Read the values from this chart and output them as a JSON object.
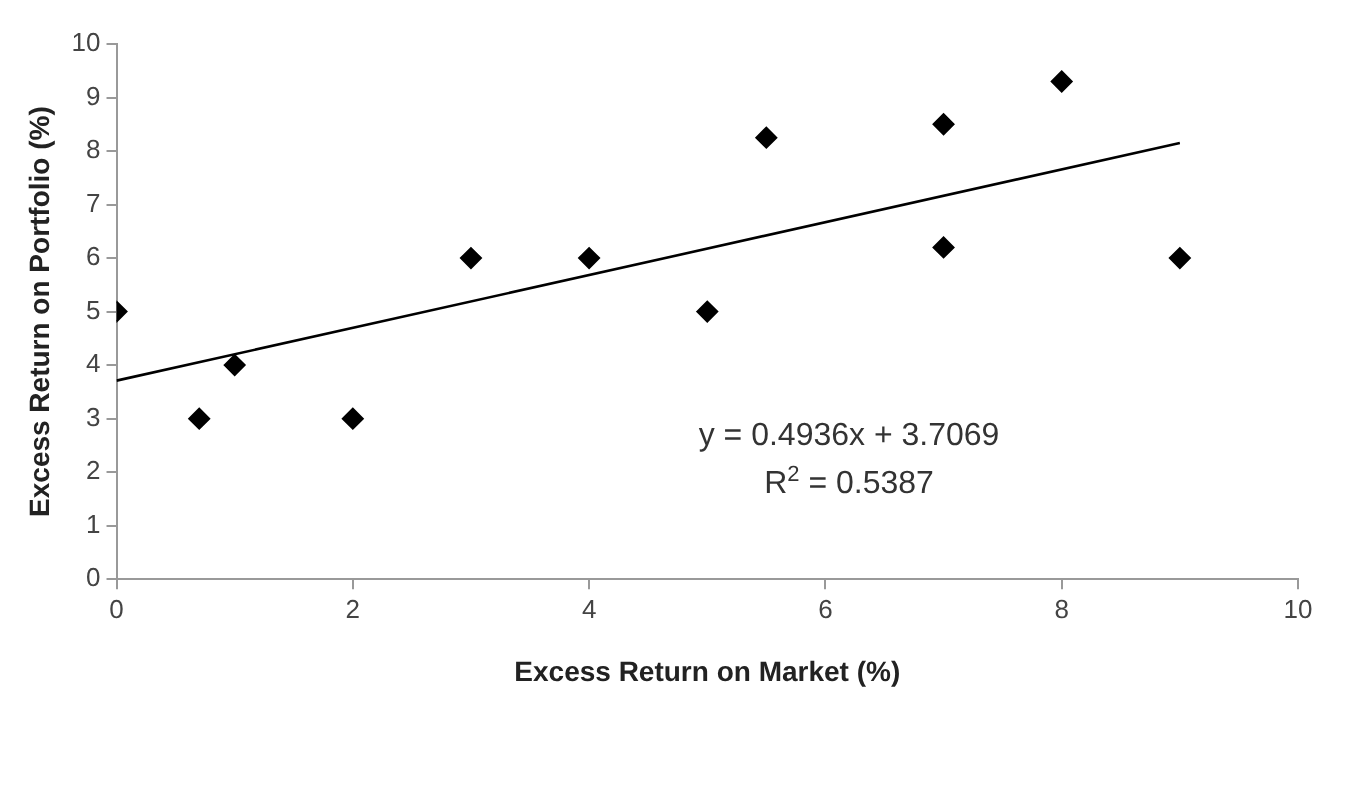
{
  "chart_data": {
    "type": "scatter",
    "xlabel": "Excess Return on Market (%)",
    "ylabel": "Excess Return on Portfolio (%)",
    "xlim": [
      0,
      10
    ],
    "xticks": [
      0,
      2,
      4,
      6,
      8,
      10
    ],
    "ylim": [
      0,
      10
    ],
    "yticks": [
      0,
      1,
      2,
      3,
      4,
      5,
      6,
      7,
      8,
      9,
      10
    ],
    "grid": false,
    "legend": false,
    "annotations": [
      "y = 0.4936x + 3.7069",
      "R$^{2}$ = 0.5387"
    ],
    "series": [
      {
        "color": "#000000",
        "marker": "diamond",
        "x": [
          0,
          0.7,
          1,
          2,
          3,
          4,
          5,
          5.5,
          7,
          7,
          8,
          9
        ],
        "values": [
          5,
          3,
          4,
          3,
          6,
          6,
          5,
          8.25,
          8.5,
          6.2,
          9.3,
          6
        ]
      },
      {
        "type": "line",
        "color": "#000000",
        "marker": "none",
        "x": [
          0,
          9
        ],
        "values": [
          3.71,
          8.15
        ]
      }
    ]
  }
}
